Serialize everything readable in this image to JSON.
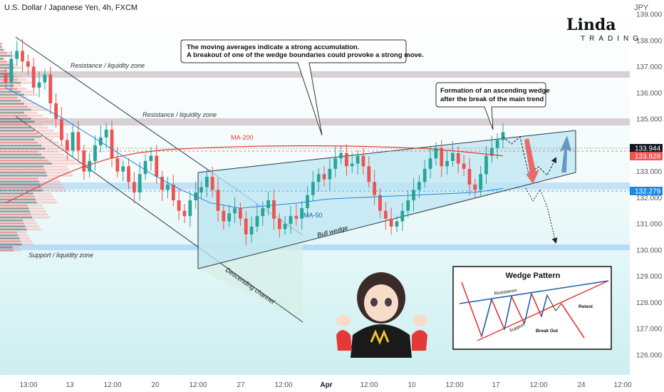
{
  "header": {
    "title": "U.S. Dollar / Japanese Yen, 4h, FXCM",
    "currency": "JPY"
  },
  "logo": {
    "main": "Linda",
    "sub": "TRADING"
  },
  "callouts": {
    "top_line1": "The moving averages indicate a strong accumulation.",
    "top_line2": "A breakout of one of the wedge boundaries could provoke a strong move.",
    "right_line1": "Formation of an ascending wedge",
    "right_line2": "after the break of the main trend"
  },
  "zones": {
    "resistance_1": "Resistance / liquidity zone",
    "resistance_2": "Resistance / liquidity zone",
    "support": "Support / liquidity zone"
  },
  "annotations": {
    "ma200": "MA-200",
    "ma50": "MA-50",
    "bull_wedge": "Bull wedge",
    "descending_channel": "Descending channel"
  },
  "inset": {
    "title": "Wedge Pattern",
    "resistance": "Resistance",
    "support": "Support",
    "break_out": "Break Out",
    "retest": "Retest"
  },
  "colors": {
    "background_top": "#ffffff",
    "background_bottom": "#c9eef0",
    "bull_candle": "#26a69a",
    "bear_candle": "#ef5350",
    "ma200": "#e53935",
    "ma50": "#1e88e5",
    "zone": "#d8d0d4",
    "support_zone": "#b8dcf5",
    "wedge_fill": "#bde6f3",
    "channel_fill": "#cfeee4",
    "arrow_red": "#ef5350",
    "arrow_blue": "#5b8fb9"
  },
  "chart_data": {
    "type": "candlestick",
    "symbol": "USDJPY",
    "timeframe": "4h",
    "y_axis": {
      "min": 125.5,
      "max": 139.4,
      "ticks": [
        "139.000",
        "138.000",
        "137.000",
        "136.000",
        "135.000",
        "133.000",
        "132.000",
        "131.000",
        "130.000",
        "129.000",
        "128.000",
        "127.000",
        "126.000"
      ]
    },
    "x_axis": {
      "ticks": [
        "13:00",
        "13",
        "12:00",
        "20",
        "12:00",
        "27",
        "12:00",
        "Apr",
        "12:00",
        "10",
        "12:00",
        "17",
        "12:00",
        "24",
        "12:00"
      ]
    },
    "price_tags": [
      {
        "value": "133.944",
        "color": "#131722"
      },
      {
        "value": "133.828",
        "color": "#ef5350"
      },
      {
        "value": "132.279",
        "color": "#1e88e5"
      }
    ],
    "resistance_zones": [
      [
        136.65,
        136.85
      ],
      [
        134.9,
        135.15
      ]
    ],
    "support_zone": [
      130.05,
      130.25
    ],
    "closes": [
      136.4,
      137.3,
      137.6,
      137.2,
      137.0,
      136.2,
      136.4,
      136.7,
      135.6,
      135.0,
      134.2,
      133.8,
      134.5,
      133.8,
      133.0,
      133.4,
      134.0,
      134.3,
      134.6,
      133.5,
      133.0,
      133.2,
      132.6,
      132.2,
      132.9,
      133.4,
      133.6,
      132.8,
      132.3,
      132.5,
      131.9,
      131.5,
      131.3,
      131.9,
      132.2,
      132.4,
      132.8,
      132.3,
      131.5,
      131.1,
      131.4,
      131.6,
      131.2,
      130.6,
      130.9,
      131.3,
      131.6,
      131.9,
      131.2,
      130.8,
      131.0,
      131.3,
      131.2,
      131.6,
      132.1,
      132.6,
      132.9,
      132.7,
      133.1,
      133.5,
      133.7,
      133.2,
      133.3,
      133.6,
      133.2,
      132.6,
      132.1,
      131.5,
      131.2,
      130.9,
      131.1,
      131.5,
      131.9,
      132.3,
      132.6,
      133.1,
      133.5,
      133.9,
      133.2,
      133.4,
      133.7,
      133.3,
      133.1,
      132.5,
      132.3,
      132.9,
      133.6,
      133.9,
      134.2,
      134.5
    ],
    "ma200": [
      131.8,
      132.3,
      132.8,
      133.2,
      133.5,
      133.7,
      133.82,
      133.88,
      133.92,
      133.95,
      133.97,
      133.98,
      133.98,
      133.97,
      133.95,
      133.92,
      133.88,
      133.8,
      133.7,
      133.6
    ],
    "ma50": [
      136.2,
      135.6,
      135.0,
      134.3,
      133.6,
      132.9,
      132.3,
      131.8,
      131.6,
      131.7,
      131.8,
      131.95,
      132.0,
      132.05,
      132.1,
      132.15,
      132.2,
      132.35
    ],
    "wedge": {
      "upper": [
        [
          134.6,
          134.6
        ]
      ],
      "lower": [
        [
          131.0,
          132.5
        ]
      ]
    }
  }
}
